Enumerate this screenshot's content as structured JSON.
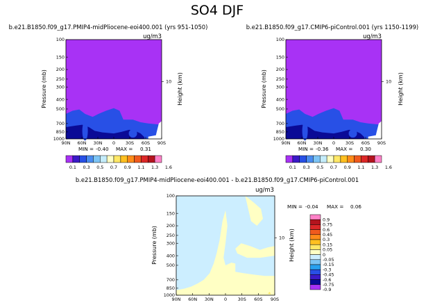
{
  "figure_title": "SO4 DJF",
  "units": "ug/m3",
  "chart_data": [
    {
      "type": "heatmap",
      "title": "b.e21.B1850.f09_g17.PMIP4-midPliocene-eoi400.001 (yrs 951-1050)",
      "units": "ug/m3",
      "xlabel": "",
      "ylabel": "Pressure (mb)",
      "y2label": "Height (km)",
      "x_ticks": [
        "90N",
        "60N",
        "30N",
        "0",
        "30S",
        "60S",
        "90S"
      ],
      "y_ticks": [
        100,
        150,
        200,
        250,
        300,
        400,
        500,
        700,
        850,
        1000
      ],
      "y2_ticks": [
        10
      ],
      "min_label": "MIN =",
      "min": "-0.40",
      "max_label": "MAX =",
      "max": "0.31",
      "background_color": "#a832f5"
    },
    {
      "type": "heatmap",
      "title": "b.e21.B1850.f09_g17.CMIP6-piControl.001 (yrs 1150-1199)",
      "units": "ug/m3",
      "xlabel": "",
      "ylabel": "Pressure (mb)",
      "y2label": "Height (km)",
      "x_ticks": [
        "90N",
        "60N",
        "30N",
        "0",
        "30S",
        "60S",
        "90S"
      ],
      "y_ticks": [
        100,
        150,
        200,
        250,
        300,
        400,
        500,
        700,
        850,
        1000
      ],
      "y2_ticks": [
        10
      ],
      "min_label": "MIN =",
      "min": "-0.36",
      "max_label": "MAX =",
      "max": "0.30",
      "background_color": "#a832f5"
    },
    {
      "type": "heatmap",
      "title": "b.e21.B1850.f09_g17.PMIP4-midPliocene-eoi400.001 - b.e21.B1850.f09_g17.CMIP6-piControl.001",
      "units": "ug/m3",
      "xlabel": "",
      "ylabel": "Pressure (mb)",
      "y2label": "Height (km)",
      "x_ticks": [
        "90N",
        "60N",
        "30N",
        "0",
        "30S",
        "60S",
        "90S"
      ],
      "y_ticks": [
        100,
        150,
        200,
        250,
        300,
        400,
        500,
        700,
        850,
        1000
      ],
      "y2_ticks": [
        10
      ],
      "min_label": "MIN =",
      "min": "-0.04",
      "max_label": "MAX =",
      "max": "0.06",
      "background_color": "#cceeff"
    }
  ],
  "colorbar_top": {
    "labels": [
      "0.1",
      "0.3",
      "0.5",
      "0.7",
      "0.9",
      "1.1",
      "1.3",
      "1.6"
    ],
    "colors": [
      "#a832f5",
      "#3a1ac8",
      "#2850e6",
      "#4a8cf0",
      "#7cc4f5",
      "#c4ecfa",
      "#ffffc4",
      "#ffe866",
      "#ffc020",
      "#ff8c1a",
      "#f05a1e",
      "#dc2828",
      "#b4141e",
      "#ff82c8"
    ]
  },
  "colorbar_diff": {
    "labels": [
      "0.9",
      "0.75",
      "0.6",
      "0.45",
      "0.3",
      "0.15",
      "0.05",
      "0",
      "-0.05",
      "-0.15",
      "-0.3",
      "-0.45",
      "-0.6",
      "-0.75",
      "-0.9"
    ],
    "colors": [
      "#ff82c8",
      "#b4141e",
      "#dc2828",
      "#f05a1e",
      "#ff8c1a",
      "#ffc020",
      "#ffe866",
      "#ffffc4",
      "#cceeff",
      "#7cc4f5",
      "#28a0f0",
      "#2850e6",
      "#3a1ac8",
      "#0a0a96",
      "#a832f5"
    ]
  },
  "field_colors": {
    "blue": "#2850e6",
    "dark_blue": "#0a0a96",
    "white": "#ffffff",
    "diff_positive": "#ffffc4",
    "diff_yellow": "#ffe866"
  }
}
